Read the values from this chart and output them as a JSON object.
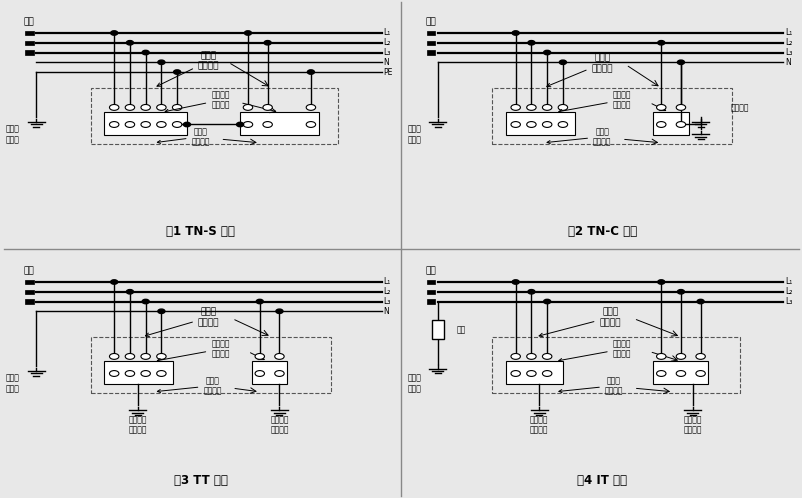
{
  "bg_color": "#e8e8e8",
  "panel_bg": "#ffffff",
  "line_color": "#000000",
  "title_tns": "图1 TN-S 系统",
  "title_tnc": "图2 TN-C 系统",
  "title_tt": "图3 TT 系统",
  "title_it": "图4 IT 系统",
  "label_power": "电源",
  "label_grnd_pt": "电源端\n接地点",
  "label_user_device": "用户的\n电气装置",
  "label_elec_device": "电气装置\n中的设备",
  "label_exposed": "外露可\n接近导体",
  "label_elec_grnd": "电气装置\n的接地极",
  "label_re_ground": "重复接地",
  "label_impedance": "阻抗",
  "font_size_tiny": 5.5,
  "font_size_label": 6.5,
  "font_size_title": 8.5
}
